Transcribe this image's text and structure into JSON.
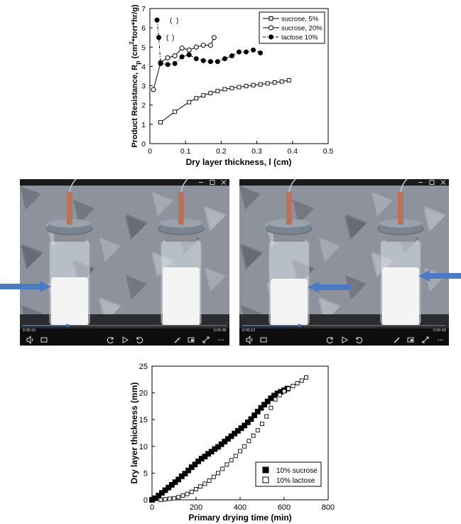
{
  "chart_data": [
    {
      "type": "line",
      "xlabel": "Dry layer thickness, l (cm)",
      "ylabel": "Product Resistance, R_p (cm²*torr*hr/g)",
      "ylabel_parts": {
        "main": "Product Resistance, R",
        "sub": "p",
        "paren_open": " (cm",
        "sup": "2",
        "rest": "*torr*hr/g)"
      },
      "xlim": [
        0,
        0.5
      ],
      "ylim": [
        0,
        7
      ],
      "xticks": [
        "0",
        "0.1",
        "0.2",
        "0.3",
        "0.4",
        "0.5"
      ],
      "yticks": [
        "0",
        "1",
        "2",
        "3",
        "4",
        "5",
        "6",
        "7"
      ],
      "grid": false,
      "legend_position": "top-right",
      "series": [
        {
          "name": "sucrose, 5%",
          "marker": "open-square",
          "line": "solid",
          "x": [
            0.03,
            0.07,
            0.11,
            0.13,
            0.15,
            0.17,
            0.19,
            0.21,
            0.23,
            0.25,
            0.27,
            0.29,
            0.31,
            0.33,
            0.35,
            0.37,
            0.39
          ],
          "y": [
            1.1,
            1.65,
            2.15,
            2.35,
            2.5,
            2.62,
            2.72,
            2.82,
            2.88,
            2.93,
            2.98,
            3.03,
            3.07,
            3.12,
            3.17,
            3.22,
            3.28
          ]
        },
        {
          "name": "sucrose, 20%",
          "marker": "open-circle",
          "line": "solid",
          "x": [
            0.01,
            0.03,
            0.05,
            0.07,
            0.09,
            0.11,
            0.13,
            0.15,
            0.17,
            0.18
          ],
          "y": [
            2.8,
            4.2,
            4.45,
            4.55,
            4.95,
            4.85,
            5.0,
            5.1,
            5.1,
            5.5
          ]
        },
        {
          "name": "lactose 10%",
          "marker": "filled-circle",
          "line": "dash-dot",
          "x": [
            0.02,
            0.025,
            0.03,
            0.05,
            0.07,
            0.09,
            0.11,
            0.13,
            0.15,
            0.17,
            0.19,
            0.21,
            0.23,
            0.25,
            0.27,
            0.29,
            0.31
          ],
          "y": [
            6.4,
            5.5,
            4.15,
            4.1,
            4.15,
            4.5,
            4.6,
            4.4,
            4.3,
            4.25,
            4.25,
            4.4,
            4.55,
            4.75,
            4.75,
            4.85,
            4.7
          ]
        }
      ],
      "annotations": [
        {
          "text": "(",
          "near": "lactose 10% first points"
        },
        {
          "text": ")",
          "near": "lactose 10% first points"
        }
      ]
    },
    {
      "type": "scatter",
      "xlabel": "Primary drying time (min)",
      "ylabel": "Dry layer thickness (mm)",
      "xlim": [
        0,
        800
      ],
      "ylim": [
        0,
        25
      ],
      "xticks": [
        "0",
        "200",
        "400",
        "600",
        "800"
      ],
      "yticks": [
        "0",
        "5",
        "10",
        "15",
        "20",
        "25"
      ],
      "grid": false,
      "legend_position": "bottom-right",
      "series": [
        {
          "name": "10% sucrose",
          "marker": "filled-square",
          "x": [
            0,
            15,
            30,
            45,
            60,
            75,
            90,
            105,
            120,
            135,
            150,
            165,
            180,
            195,
            210,
            225,
            240,
            255,
            270,
            285,
            300,
            315,
            330,
            345,
            360,
            375,
            390,
            405,
            420,
            435,
            450,
            465,
            480,
            495,
            510,
            525,
            540,
            555,
            570,
            585,
            600,
            615
          ],
          "y": [
            0,
            0.3,
            0.8,
            1.3,
            1.8,
            2.3,
            2.8,
            3.3,
            3.8,
            4.4,
            4.9,
            5.5,
            6.1,
            6.6,
            7.2,
            7.7,
            8.1,
            8.6,
            9.0,
            9.5,
            9.9,
            10.4,
            10.9,
            11.4,
            11.9,
            12.4,
            12.9,
            13.4,
            13.9,
            14.5,
            15.1,
            15.8,
            16.5,
            17.2,
            17.8,
            18.4,
            19.0,
            19.5,
            19.9,
            20.2,
            20.5,
            20.8
          ]
        },
        {
          "name": "10% lactose",
          "marker": "open-square",
          "x": [
            40,
            60,
            80,
            100,
            120,
            140,
            160,
            180,
            200,
            220,
            240,
            260,
            280,
            300,
            320,
            340,
            360,
            380,
            400,
            420,
            440,
            460,
            480,
            500,
            520,
            540,
            560,
            580,
            600,
            620,
            640,
            660,
            680,
            700
          ],
          "y": [
            0,
            0.1,
            0.2,
            0.3,
            0.5,
            0.8,
            1.1,
            1.5,
            2.0,
            2.5,
            3.0,
            3.6,
            4.3,
            5.0,
            5.8,
            6.6,
            7.4,
            8.2,
            9.1,
            10.0,
            11.0,
            12.0,
            13.0,
            14.2,
            15.6,
            17.2,
            18.8,
            19.6,
            20.3,
            20.8,
            21.3,
            21.8,
            22.3,
            22.9
          ]
        }
      ]
    }
  ],
  "video_players": [
    {
      "time_current": "0:00:10",
      "time_total": "0:00:45",
      "window_controls": [
        "minimize-icon",
        "maximize-icon",
        "close-icon"
      ],
      "toolbar_icons": [
        "volume-icon",
        "subtitles-icon",
        "rewind-icon",
        "play-icon",
        "forward-icon",
        "pen-icon",
        "miniplayer-icon",
        "fullscreen-icon",
        "more-icon"
      ],
      "progress": 0.22,
      "arrow_side": "left"
    },
    {
      "time_current": "0:00:12",
      "time_total": "0:00:43",
      "window_controls": [
        "minimize-icon",
        "maximize-icon",
        "close-icon"
      ],
      "toolbar_icons": [
        "volume-icon",
        "subtitles-icon",
        "rewind-icon",
        "play-icon",
        "forward-icon",
        "pen-icon",
        "miniplayer-icon",
        "fullscreen-icon",
        "more-icon"
      ],
      "progress": 0.28,
      "arrow_side": "right"
    }
  ],
  "colors": {
    "arrow": "#4a7bc4",
    "player_background": "#0d0d0d",
    "progress_fill": "#3f79c2",
    "foil": "#8d929c",
    "cake": "#f4f4f4",
    "copper": "#b8735a",
    "cap": "#7a8390"
  }
}
